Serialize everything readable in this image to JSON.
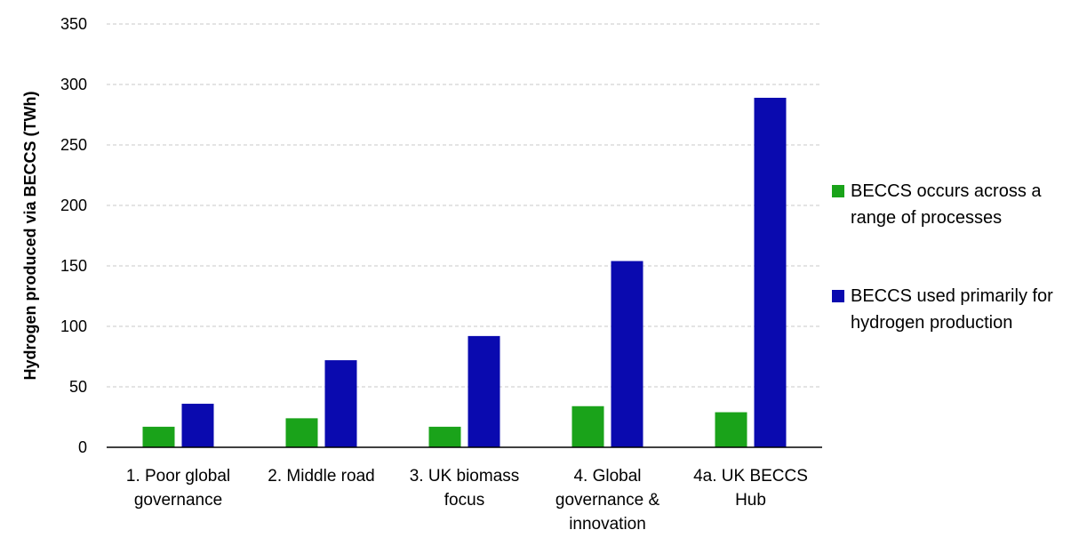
{
  "chart_data": {
    "type": "bar",
    "categories": [
      [
        "1. Poor global",
        "governance"
      ],
      [
        "2. Middle road"
      ],
      [
        "3. UK biomass",
        "focus"
      ],
      [
        "4. Global",
        "governance &",
        "innovation"
      ],
      [
        "4a. UK BECCS",
        "Hub"
      ]
    ],
    "series": [
      {
        "name": "BECCS occurs across a range of processes",
        "color": "#1aa31a",
        "values": [
          17,
          24,
          17,
          34,
          29
        ]
      },
      {
        "name": "BECCS used primarily for hydrogen production",
        "color": "#0a0aaf",
        "values": [
          36,
          72,
          92,
          154,
          289
        ]
      }
    ],
    "ylabel": "Hydrogen produced via BECCS (TWh)",
    "ylim": [
      0,
      350
    ],
    "yticks": [
      0,
      50,
      100,
      150,
      200,
      250,
      300,
      350
    ],
    "grid": true,
    "legend": "right"
  }
}
